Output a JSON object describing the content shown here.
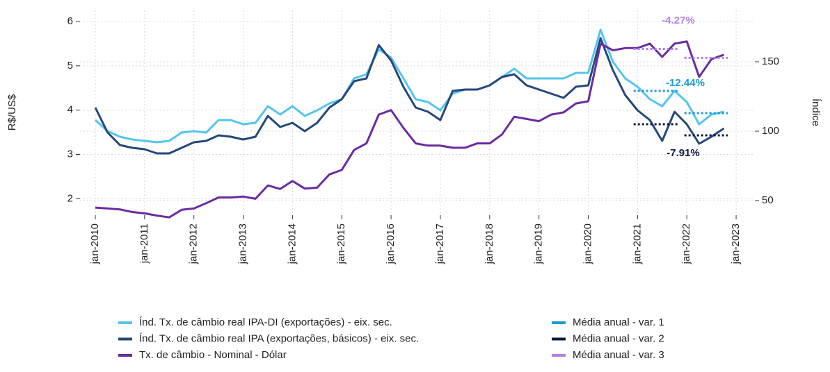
{
  "chart_data": {
    "type": "line",
    "ylabel": "R$/US$",
    "y2label": "Índice",
    "xlim": [
      2009.69,
      2023.38
    ],
    "xticks": [
      {
        "value": 2010,
        "label": "jan-2010"
      },
      {
        "value": 2011,
        "label": "jan-2011"
      },
      {
        "value": 2012,
        "label": "jan-2012"
      },
      {
        "value": 2013,
        "label": "jan-2013"
      },
      {
        "value": 2014,
        "label": "jan-2014"
      },
      {
        "value": 2015,
        "label": "jan-2015"
      },
      {
        "value": 2016,
        "label": "jan-2016"
      },
      {
        "value": 2017,
        "label": "jan-2017"
      },
      {
        "value": 2018,
        "label": "jan-2018"
      },
      {
        "value": 2019,
        "label": "jan-2019"
      },
      {
        "value": 2020,
        "label": "jan-2020"
      },
      {
        "value": 2021,
        "label": "jan-2021"
      },
      {
        "value": 2022,
        "label": "jan-2022"
      },
      {
        "value": 2023,
        "label": "jan-2023"
      }
    ],
    "ylim": [
      1.63,
      6.25
    ],
    "yticks": [
      2,
      3,
      4,
      5,
      6
    ],
    "y2lim": [
      39.5,
      187
    ],
    "y2ticks": [
      50,
      100,
      150
    ],
    "grid": true,
    "x": [
      2010,
      2010.25,
      2010.5,
      2010.75,
      2011,
      2011.25,
      2011.5,
      2011.75,
      2012,
      2012.25,
      2012.5,
      2012.75,
      2013,
      2013.25,
      2013.5,
      2013.75,
      2014,
      2014.25,
      2014.5,
      2014.75,
      2015,
      2015.25,
      2015.5,
      2015.75,
      2016,
      2016.25,
      2016.5,
      2016.75,
      2017,
      2017.25,
      2017.5,
      2017.75,
      2018,
      2018.25,
      2018.5,
      2018.75,
      2019,
      2019.25,
      2019.5,
      2019.75,
      2020,
      2020.25,
      2020.5,
      2020.75,
      2021,
      2021.25,
      2021.5,
      2021.75,
      2022,
      2022.25,
      2022.5,
      2022.75
    ],
    "series": [
      {
        "name": "Índ. Tx. de câmbio real IPA-DI (exportações) - eix. sec.",
        "color": "#55c4ee",
        "axis": "y2",
        "values": [
          108,
          100,
          96,
          94,
          93,
          92,
          93,
          99,
          100,
          99,
          108,
          108,
          105,
          106,
          118,
          112,
          118,
          111,
          115,
          120,
          123,
          138,
          141,
          159,
          153,
          138,
          123,
          121,
          115,
          127,
          130,
          130,
          133,
          139,
          145,
          138,
          138,
          138,
          138,
          142,
          142,
          173,
          150,
          138,
          132,
          123,
          118,
          129,
          121,
          105,
          112,
          114
        ]
      },
      {
        "name": "Índ. Tx. de câmbio real IPA (exportações, básicos) - eix. sec.",
        "color": "#24487a",
        "axis": "y2",
        "values": [
          117,
          99,
          90,
          88,
          87,
          84,
          84,
          88,
          92,
          93,
          97,
          96,
          94,
          96,
          111,
          103,
          106,
          100,
          106,
          117,
          123,
          136,
          138,
          162,
          151,
          132,
          117,
          114,
          108,
          129,
          130,
          130,
          133,
          139,
          141,
          133,
          130,
          127,
          124,
          132,
          133,
          167,
          144,
          126,
          115,
          108,
          93,
          114,
          105,
          91,
          96,
          102
        ]
      },
      {
        "name": "Tx. de câmbio - Nominal - Dólar",
        "color": "#6a2ba0",
        "values": [
          1.8,
          1.78,
          1.76,
          1.7,
          1.67,
          1.62,
          1.58,
          1.75,
          1.78,
          1.9,
          2.03,
          2.03,
          2.05,
          2.0,
          2.3,
          2.22,
          2.4,
          2.23,
          2.25,
          2.55,
          2.65,
          3.1,
          3.25,
          3.9,
          4.0,
          3.6,
          3.25,
          3.2,
          3.2,
          3.15,
          3.15,
          3.25,
          3.25,
          3.45,
          3.85,
          3.8,
          3.75,
          3.9,
          3.95,
          4.15,
          4.2,
          5.5,
          5.35,
          5.4,
          5.4,
          5.5,
          5.2,
          5.5,
          5.55,
          4.75,
          5.15,
          5.25
        ]
      }
    ],
    "averages": [
      {
        "name": "Média anual - var. 1",
        "color": "#1a9bd7",
        "axis": "y2",
        "x": [
          [
            2020.92,
            2021.83
          ],
          [
            2021.95,
            2022.83
          ]
        ],
        "values": [
          [
            129,
            129
          ],
          [
            113,
            113
          ]
        ]
      },
      {
        "name": "Média anual - var. 2",
        "color": "#0d1b3e",
        "axis": "y2",
        "x": [
          [
            2020.92,
            2021.83
          ],
          [
            2021.95,
            2022.83
          ]
        ],
        "values": [
          [
            105,
            105
          ],
          [
            97,
            97
          ]
        ]
      },
      {
        "name": "Média anual - var. 3",
        "color": "#b47fe0",
        "x": [
          [
            2020.92,
            2021.83
          ],
          [
            2021.95,
            2022.83
          ]
        ],
        "values": [
          [
            5.38,
            5.38
          ],
          [
            5.18,
            5.18
          ]
        ]
      }
    ],
    "annotations": [
      "-4.27%",
      "-12.44%",
      "-7.91%"
    ]
  }
}
